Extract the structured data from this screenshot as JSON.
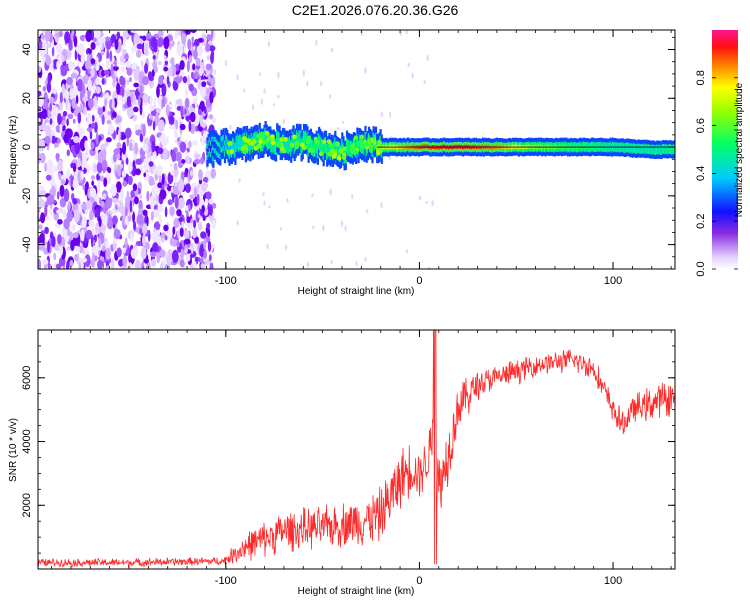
{
  "figure": {
    "title": "C2E1.2026.076.20.36.G26"
  },
  "chart_data": [
    {
      "type": "heatmap",
      "name": "spectrogram",
      "xlabel": "Height of straight line (km)",
      "ylabel": "Frequency (Hz)",
      "xlim": [
        -197,
        132
      ],
      "ylim": [
        -50,
        48
      ],
      "xticks": [
        -100,
        0,
        100
      ],
      "yticks": [
        -40,
        -20,
        0,
        20,
        40
      ],
      "noise_region_x": [
        -197,
        -106
      ],
      "signal_track": [
        {
          "x": -110,
          "freq": -1,
          "amp": 0.2
        },
        {
          "x": -100,
          "freq": 0,
          "amp": 0.35
        },
        {
          "x": -90,
          "freq": 1,
          "amp": 0.45
        },
        {
          "x": -80,
          "freq": 3,
          "amp": 0.5
        },
        {
          "x": -70,
          "freq": 1,
          "amp": 0.45
        },
        {
          "x": -60,
          "freq": 2,
          "amp": 0.5
        },
        {
          "x": -50,
          "freq": 0,
          "amp": 0.5
        },
        {
          "x": -40,
          "freq": -2,
          "amp": 0.5
        },
        {
          "x": -30,
          "freq": 2,
          "amp": 0.55
        },
        {
          "x": -20,
          "freq": 0,
          "amp": 0.7
        },
        {
          "x": -10,
          "freq": 0,
          "amp": 0.8
        },
        {
          "x": 0,
          "freq": 0,
          "amp": 0.9
        },
        {
          "x": 20,
          "freq": 0,
          "amp": 0.95
        },
        {
          "x": 40,
          "freq": 0,
          "amp": 0.85
        },
        {
          "x": 60,
          "freq": 0,
          "amp": 0.65
        },
        {
          "x": 80,
          "freq": 0,
          "amp": 0.55
        },
        {
          "x": 100,
          "freq": 0,
          "amp": 0.45
        },
        {
          "x": 120,
          "freq": -1,
          "amp": 0.45
        },
        {
          "x": 132,
          "freq": -1,
          "amp": 0.5
        }
      ],
      "colorbar": {
        "label": "Normalized spectral amplitude",
        "range": [
          0,
          1
        ],
        "ticks": [
          0.0,
          0.2,
          0.4,
          0.6,
          0.8
        ],
        "tick_labels": [
          "0.0",
          "0.2",
          "0.4",
          "0.6",
          "0.8"
        ]
      }
    },
    {
      "type": "line",
      "name": "snr",
      "xlabel": "Height of straight line (km)",
      "ylabel": "SNR (10 * v/v)",
      "xlim": [
        -197,
        132
      ],
      "ylim": [
        0,
        7500
      ],
      "xticks": [
        -100,
        0,
        100
      ],
      "yticks": [
        2000,
        4000,
        6000
      ],
      "color": "#ff2a2a",
      "series": [
        {
          "name": "SNR",
          "x": [
            -197,
            -150,
            -101,
            -90,
            -70,
            -50,
            -30,
            -20,
            -10,
            -5,
            0,
            5,
            7,
            8,
            10,
            15,
            20,
            30,
            40,
            50,
            60,
            70,
            80,
            90,
            100,
            105,
            110,
            120,
            130,
            132
          ],
          "mid": [
            200,
            200,
            250,
            700,
            1200,
            1300,
            1500,
            1700,
            2800,
            3200,
            3000,
            3500,
            4800,
            3300,
            2500,
            3700,
            5100,
            5800,
            6000,
            6200,
            6400,
            6500,
            6550,
            6300,
            5000,
            4500,
            5000,
            5200,
            5400,
            5300
          ],
          "amp": [
            150,
            150,
            150,
            550,
            750,
            750,
            900,
            1000,
            1100,
            1000,
            900,
            900,
            2600,
            2600,
            1500,
            1100,
            900,
            600,
            450,
            450,
            400,
            400,
            450,
            450,
            500,
            500,
            500,
            650,
            700,
            650
          ]
        }
      ]
    }
  ]
}
